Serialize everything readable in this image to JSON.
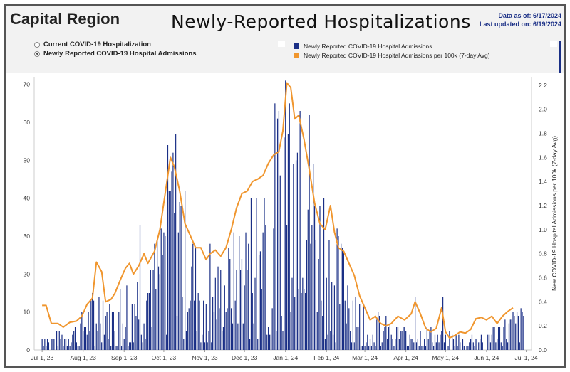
{
  "header": {
    "region": "Capital Region",
    "title": "Newly-Reported Hospitalizations",
    "data_as_of": "Data as of: 6/17/2024",
    "last_updated": "Last updated on: 6/19/2024"
  },
  "toggle": {
    "options": [
      "Current COVID-19 Hospitalization",
      "Newly Reported COVID-19 Hospital Admissions"
    ],
    "selected_index": 1
  },
  "legend": {
    "items": [
      {
        "label": "Newly Reported COVID-19 Hospital Admissions",
        "color": "#1a2f86"
      },
      {
        "label": "Newly Reported COVID-19 Hospital Admissions per 100k (7-day Avg)",
        "color": "#f0962e"
      }
    ]
  },
  "colors": {
    "bar": "#1a2f86",
    "line": "#f0962e",
    "header_bg": "#f2f2f2"
  },
  "chart_data": {
    "type": "bar+line",
    "x_start": "2023-06-25",
    "x_end": "2024-07-05",
    "x_ticks": [
      {
        "label": "Jul 1, 23",
        "day": 6
      },
      {
        "label": "Aug 1, 23",
        "day": 37
      },
      {
        "label": "Sep 1, 23",
        "day": 68
      },
      {
        "label": "Oct 1, 23",
        "day": 98
      },
      {
        "label": "Nov 1, 23",
        "day": 129
      },
      {
        "label": "Dec 1, 23",
        "day": 159
      },
      {
        "label": "Jan 1, 24",
        "day": 190
      },
      {
        "label": "Feb 1, 24",
        "day": 221
      },
      {
        "label": "Mar 1, 24",
        "day": 250
      },
      {
        "label": "Apr 1, 24",
        "day": 281
      },
      {
        "label": "May 1, 24",
        "day": 311
      },
      {
        "label": "Jun 1, 24",
        "day": 342
      },
      {
        "label": "Jul 1, 24",
        "day": 372
      }
    ],
    "y_left": {
      "min": 0,
      "max": 72,
      "ticks": [
        0,
        10,
        20,
        30,
        40,
        50,
        60,
        70
      ]
    },
    "y_right": {
      "min": 0,
      "max": 2.27,
      "ticks": [
        "0.0",
        "0.2",
        "0.4",
        "0.6",
        "0.8",
        "1.0",
        "1.2",
        "1.4",
        "1.6",
        "1.8",
        "2.0",
        "2.2"
      ],
      "label": "New COVID-19 Hospital Admissions per 100k (7-day Avg)"
    },
    "series": [
      {
        "name": "Newly Reported COVID-19 Hospital Admissions",
        "kind": "bar",
        "axis": "left",
        "anchors": [
          [
            6,
            4
          ],
          [
            15,
            3
          ],
          [
            25,
            4
          ],
          [
            37,
            7
          ],
          [
            45,
            11
          ],
          [
            52,
            14
          ],
          [
            58,
            8
          ],
          [
            66,
            13
          ],
          [
            72,
            15
          ],
          [
            80,
            16
          ],
          [
            88,
            18
          ],
          [
            95,
            24
          ],
          [
            100,
            35
          ],
          [
            105,
            45
          ],
          [
            110,
            38
          ],
          [
            116,
            25
          ],
          [
            122,
            20
          ],
          [
            128,
            17
          ],
          [
            135,
            16
          ],
          [
            142,
            17
          ],
          [
            148,
            20
          ],
          [
            155,
            24
          ],
          [
            162,
            28
          ],
          [
            168,
            32
          ],
          [
            174,
            34
          ],
          [
            180,
            42
          ],
          [
            186,
            50
          ],
          [
            190,
            58
          ],
          [
            194,
            62
          ],
          [
            199,
            60
          ],
          [
            205,
            52
          ],
          [
            210,
            42
          ],
          [
            216,
            32
          ],
          [
            222,
            26
          ],
          [
            228,
            22
          ],
          [
            234,
            20
          ],
          [
            240,
            16
          ],
          [
            246,
            12
          ],
          [
            252,
            8
          ],
          [
            258,
            7
          ],
          [
            266,
            6
          ],
          [
            275,
            5
          ],
          [
            285,
            5
          ],
          [
            295,
            5
          ],
          [
            305,
            4
          ],
          [
            315,
            3
          ],
          [
            325,
            3
          ],
          [
            335,
            4
          ],
          [
            345,
            5
          ],
          [
            355,
            6
          ],
          [
            365,
            8
          ]
        ],
        "peaks": [
          [
            80,
            33
          ],
          [
            88,
            21
          ],
          [
            94,
            22
          ],
          [
            99,
            30
          ],
          [
            102,
            42
          ],
          [
            104,
            47
          ],
          [
            133,
            28
          ],
          [
            162,
            28
          ],
          [
            174,
            40
          ],
          [
            190,
            71
          ],
          [
            196,
            49
          ],
          [
            201,
            63
          ],
          [
            219,
            40
          ],
          [
            233,
            27
          ],
          [
            288,
            14
          ],
          [
            309,
            14
          ],
          [
            370,
            9
          ]
        ]
      },
      {
        "name": "Newly Reported COVID-19 Hospital Admissions per 100k (7-day Avg)",
        "kind": "line",
        "axis": "right",
        "points": [
          [
            6,
            0.37
          ],
          [
            9,
            0.37
          ],
          [
            13,
            0.22
          ],
          [
            18,
            0.22
          ],
          [
            22,
            0.19
          ],
          [
            27,
            0.23
          ],
          [
            32,
            0.24
          ],
          [
            36,
            0.28
          ],
          [
            40,
            0.38
          ],
          [
            44,
            0.43
          ],
          [
            47,
            0.73
          ],
          [
            51,
            0.65
          ],
          [
            54,
            0.4
          ],
          [
            58,
            0.42
          ],
          [
            61,
            0.47
          ],
          [
            65,
            0.58
          ],
          [
            69,
            0.68
          ],
          [
            72,
            0.72
          ],
          [
            75,
            0.63
          ],
          [
            79,
            0.7
          ],
          [
            83,
            0.8
          ],
          [
            86,
            0.72
          ],
          [
            91,
            0.82
          ],
          [
            95,
            1.0
          ],
          [
            99,
            1.3
          ],
          [
            103,
            1.6
          ],
          [
            106,
            1.52
          ],
          [
            110,
            1.32
          ],
          [
            114,
            1.05
          ],
          [
            118,
            0.95
          ],
          [
            122,
            0.85
          ],
          [
            126,
            0.85
          ],
          [
            130,
            0.75
          ],
          [
            133,
            0.8
          ],
          [
            137,
            0.83
          ],
          [
            141,
            0.78
          ],
          [
            145,
            0.85
          ],
          [
            149,
            1.0
          ],
          [
            153,
            1.18
          ],
          [
            157,
            1.3
          ],
          [
            161,
            1.32
          ],
          [
            165,
            1.4
          ],
          [
            169,
            1.42
          ],
          [
            173,
            1.45
          ],
          [
            177,
            1.55
          ],
          [
            181,
            1.62
          ],
          [
            185,
            1.65
          ],
          [
            188,
            1.82
          ],
          [
            191,
            2.22
          ],
          [
            194,
            2.18
          ],
          [
            197,
            1.92
          ],
          [
            200,
            1.95
          ],
          [
            204,
            1.75
          ],
          [
            208,
            1.5
          ],
          [
            212,
            1.22
          ],
          [
            216,
            1.05
          ],
          [
            220,
            1.0
          ],
          [
            224,
            1.2
          ],
          [
            227,
            0.98
          ],
          [
            230,
            0.85
          ],
          [
            234,
            0.82
          ],
          [
            238,
            0.72
          ],
          [
            242,
            0.62
          ],
          [
            246,
            0.45
          ],
          [
            250,
            0.35
          ],
          [
            254,
            0.25
          ],
          [
            258,
            0.28
          ],
          [
            262,
            0.22
          ],
          [
            266,
            0.2
          ],
          [
            270,
            0.22
          ],
          [
            275,
            0.28
          ],
          [
            280,
            0.25
          ],
          [
            285,
            0.3
          ],
          [
            288,
            0.4
          ],
          [
            292,
            0.3
          ],
          [
            296,
            0.18
          ],
          [
            300,
            0.15
          ],
          [
            304,
            0.18
          ],
          [
            308,
            0.35
          ],
          [
            311,
            0.15
          ],
          [
            314,
            0.1
          ],
          [
            318,
            0.12
          ],
          [
            322,
            0.15
          ],
          [
            326,
            0.14
          ],
          [
            330,
            0.17
          ],
          [
            334,
            0.26
          ],
          [
            338,
            0.27
          ],
          [
            342,
            0.25
          ],
          [
            346,
            0.28
          ],
          [
            350,
            0.22
          ],
          [
            354,
            0.28
          ],
          [
            358,
            0.32
          ],
          [
            362,
            0.35
          ]
        ]
      }
    ]
  }
}
